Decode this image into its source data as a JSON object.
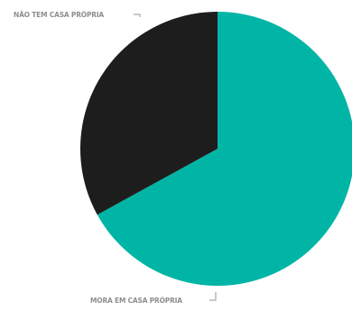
{
  "chart_data": {
    "type": "pie",
    "title": "",
    "categories": [
      "MORA EM CASA PRÓPRIA",
      "NÃO TEM CASA PRÓPRIA"
    ],
    "values": [
      67,
      33
    ],
    "colors": [
      "#00b5a6",
      "#1d1d1d"
    ],
    "start_angle_deg": 0,
    "direction": "clockwise",
    "legend": "none"
  }
}
